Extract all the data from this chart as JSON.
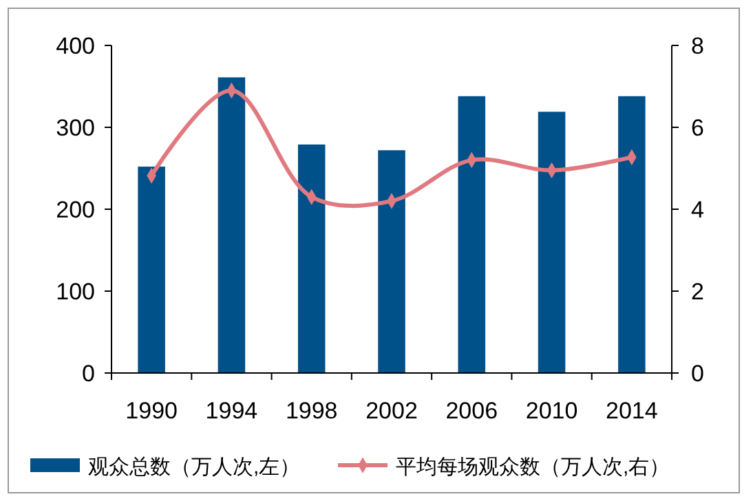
{
  "chart_data": {
    "type": "bar",
    "categories": [
      "1990",
      "1994",
      "1998",
      "2002",
      "2006",
      "2010",
      "2014"
    ],
    "series": [
      {
        "name": "观众总数（万人次,左）",
        "color": "#00508a",
        "values": [
          252,
          361,
          279,
          272,
          338,
          319,
          338
        ]
      },
      {
        "name": "平均每场观众数（万人次,右）",
        "type": "line",
        "axis": "y2",
        "color": "#e07a80",
        "marker": "diamond",
        "values": [
          4.82,
          6.9,
          4.3,
          4.2,
          5.2,
          4.95,
          5.27
        ]
      }
    ],
    "ylim": [
      0,
      400
    ],
    "yticks": [
      0,
      100,
      200,
      300,
      400
    ],
    "y2lim": [
      0,
      8
    ],
    "y2ticks": [
      0,
      2,
      4,
      6,
      8
    ],
    "grid": false,
    "legend": "bottom"
  }
}
